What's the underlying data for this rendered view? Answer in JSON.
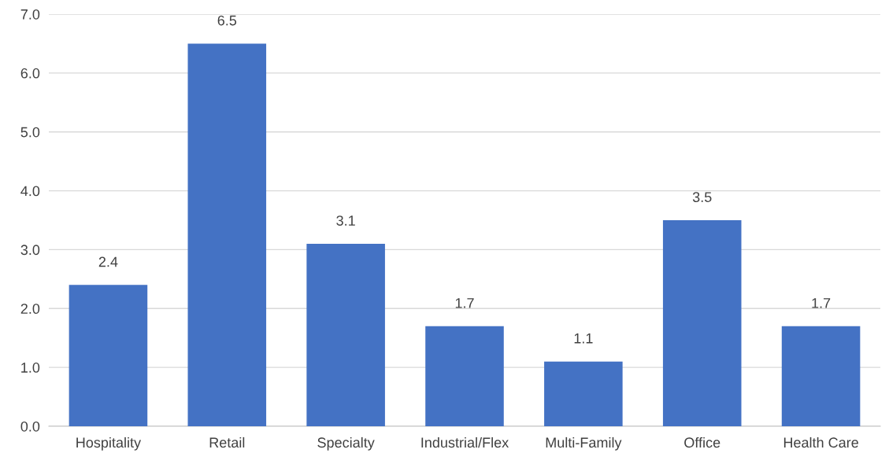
{
  "chart_data": {
    "type": "bar",
    "categories": [
      "Hospitality",
      "Retail",
      "Specialty",
      "Industrial/Flex",
      "Multi-Family",
      "Office",
      "Health Care"
    ],
    "values": [
      2.4,
      6.5,
      3.1,
      1.7,
      1.1,
      3.5,
      1.7
    ],
    "color": "#4472c4",
    "ylim": [
      0,
      7
    ],
    "yticks": [
      {
        "value": 0,
        "label": "0.0"
      },
      {
        "value": 1,
        "label": "1.0"
      },
      {
        "value": 2,
        "label": "2.0"
      },
      {
        "value": 3,
        "label": "3.0"
      },
      {
        "value": 4,
        "label": "4.0"
      },
      {
        "value": 5,
        "label": "5.0"
      },
      {
        "value": 6,
        "label": "6.0"
      },
      {
        "value": 7,
        "label": "7.0"
      }
    ],
    "grid": "y",
    "data_labels": true
  }
}
